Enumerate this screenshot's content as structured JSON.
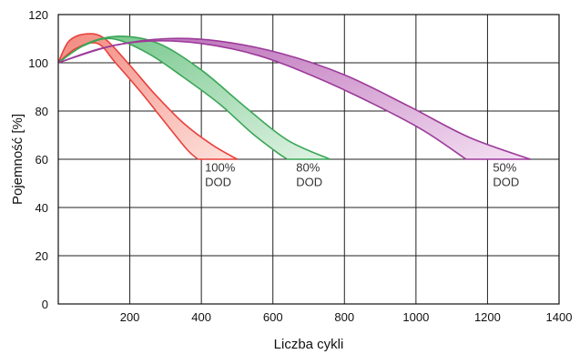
{
  "chart_data": {
    "type": "area",
    "title": "",
    "xlabel": "Liczba cykli",
    "ylabel": "Pojemność [%]",
    "xlim": [
      0,
      1400
    ],
    "ylim": [
      0,
      120
    ],
    "xticks": [
      200,
      400,
      600,
      800,
      1000,
      1200,
      1400
    ],
    "yticks": [
      0,
      20,
      40,
      60,
      80,
      100,
      120
    ],
    "grid": true,
    "series": [
      {
        "label_lines": [
          "100%",
          "DOD"
        ],
        "label_at": [
          410,
          55
        ],
        "color": "#e8413c",
        "fill_light": "#fde2dc",
        "fill_dark": "#f28a80",
        "upper": [
          [
            0,
            100
          ],
          [
            30,
            109
          ],
          [
            80,
            112
          ],
          [
            130,
            110
          ],
          [
            200,
            99
          ],
          [
            270,
            87
          ],
          [
            350,
            75
          ],
          [
            430,
            66
          ],
          [
            500,
            60
          ]
        ],
        "lower": [
          [
            0,
            100
          ],
          [
            50,
            106
          ],
          [
            110,
            108
          ],
          [
            160,
            100
          ],
          [
            230,
            88
          ],
          [
            300,
            75
          ],
          [
            360,
            64
          ],
          [
            390,
            60
          ]
        ]
      },
      {
        "label_lines": [
          "80%",
          "DOD"
        ],
        "label_at": [
          665,
          55
        ],
        "color": "#3aa657",
        "fill_light": "#e0f3e4",
        "fill_dark": "#6fc486",
        "upper": [
          [
            0,
            100
          ],
          [
            80,
            108
          ],
          [
            170,
            111
          ],
          [
            280,
            108
          ],
          [
            400,
            97
          ],
          [
            520,
            82
          ],
          [
            640,
            68
          ],
          [
            760,
            60
          ]
        ],
        "lower": [
          [
            0,
            100
          ],
          [
            70,
            107
          ],
          [
            150,
            110
          ],
          [
            250,
            104
          ],
          [
            350,
            94
          ],
          [
            450,
            83
          ],
          [
            540,
            71
          ],
          [
            610,
            63
          ],
          [
            640,
            60
          ]
        ]
      },
      {
        "label_lines": [
          "50%",
          "DOD"
        ],
        "label_at": [
          1215,
          55
        ],
        "color": "#9c3a9a",
        "fill_light": "#f3dff2",
        "fill_dark": "#b868b5",
        "upper": [
          [
            0,
            100
          ],
          [
            150,
            107
          ],
          [
            300,
            110
          ],
          [
            450,
            109
          ],
          [
            620,
            104
          ],
          [
            800,
            95
          ],
          [
            980,
            82
          ],
          [
            1150,
            69
          ],
          [
            1320,
            60
          ]
        ],
        "lower": [
          [
            0,
            100
          ],
          [
            120,
            106
          ],
          [
            250,
            109
          ],
          [
            400,
            108
          ],
          [
            560,
            103
          ],
          [
            720,
            94
          ],
          [
            880,
            83
          ],
          [
            1020,
            72
          ],
          [
            1140,
            60
          ]
        ]
      }
    ]
  }
}
